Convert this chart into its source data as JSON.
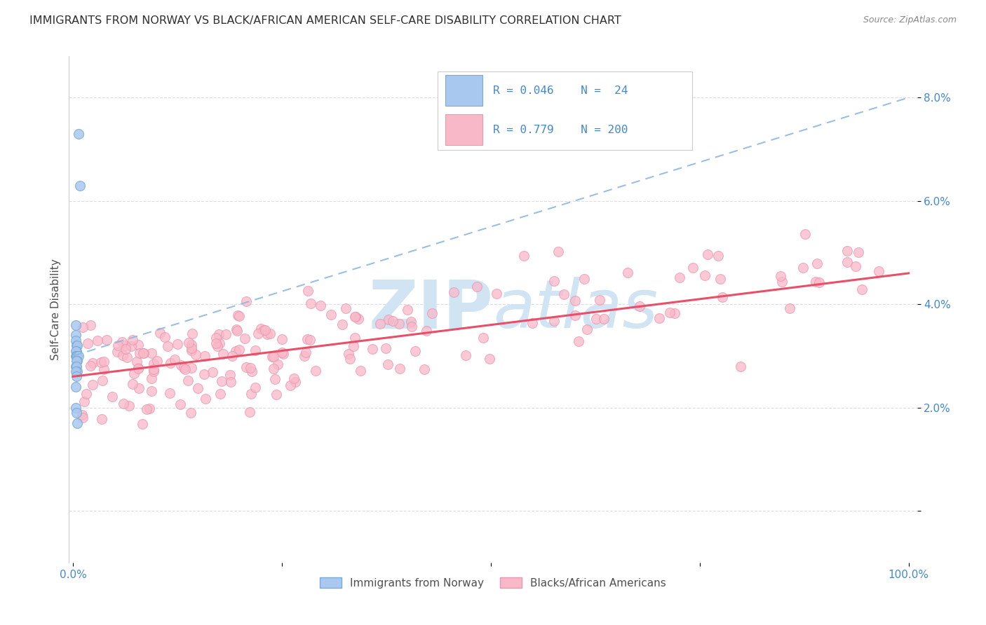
{
  "title": "IMMIGRANTS FROM NORWAY VS BLACK/AFRICAN AMERICAN SELF-CARE DISABILITY CORRELATION CHART",
  "source": "Source: ZipAtlas.com",
  "ylabel": "Self-Care Disability",
  "legend_r1": "R = 0.046",
  "legend_n1": "N =  24",
  "legend_r2": "R = 0.779",
  "legend_n2": "N = 200",
  "blue_color": "#a8c8f0",
  "blue_edge_color": "#7aaad0",
  "pink_color": "#f9b8c8",
  "pink_edge_color": "#e898b0",
  "blue_line_color": "#90b8e0",
  "pink_line_color": "#e8506a",
  "title_color": "#303030",
  "axis_tick_color": "#4488cc",
  "ylabel_color": "#505050",
  "source_color": "#888888",
  "watermark_color": "#d0e4f4",
  "background_color": "#ffffff",
  "grid_color": "#d8d8e8",
  "legend_edge_color": "#cccccc",
  "bottom_legend_label_color": "#505050",
  "blue_scatter_x": [
    0.006,
    0.008,
    0.003,
    0.003,
    0.003,
    0.004,
    0.005,
    0.004,
    0.003,
    0.003,
    0.004,
    0.005,
    0.006,
    0.005,
    0.004,
    0.003,
    0.004,
    0.005,
    0.003,
    0.004,
    0.003,
    0.003,
    0.004,
    0.005
  ],
  "blue_scatter_y": [
    0.073,
    0.063,
    0.036,
    0.034,
    0.033,
    0.032,
    0.032,
    0.031,
    0.031,
    0.03,
    0.03,
    0.03,
    0.03,
    0.029,
    0.029,
    0.028,
    0.028,
    0.027,
    0.027,
    0.026,
    0.024,
    0.02,
    0.019,
    0.017
  ],
  "pink_scatter_seed": 42,
  "pink_n": 200,
  "xlim": [
    -0.005,
    1.01
  ],
  "ylim": [
    -0.01,
    0.088
  ],
  "xticks": [
    0.0,
    0.25,
    0.5,
    0.75,
    1.0
  ],
  "xticklabels": [
    "0.0%",
    "",
    "",
    "",
    "100.0%"
  ],
  "yticks": [
    0.0,
    0.02,
    0.04,
    0.06,
    0.08
  ],
  "ytick_labels": [
    "",
    "2.0%",
    "4.0%",
    "6.0%",
    "8.0%"
  ],
  "blue_trend": [
    0.0,
    0.03,
    1.0,
    0.08
  ],
  "pink_trend": [
    0.0,
    0.026,
    1.0,
    0.046
  ]
}
